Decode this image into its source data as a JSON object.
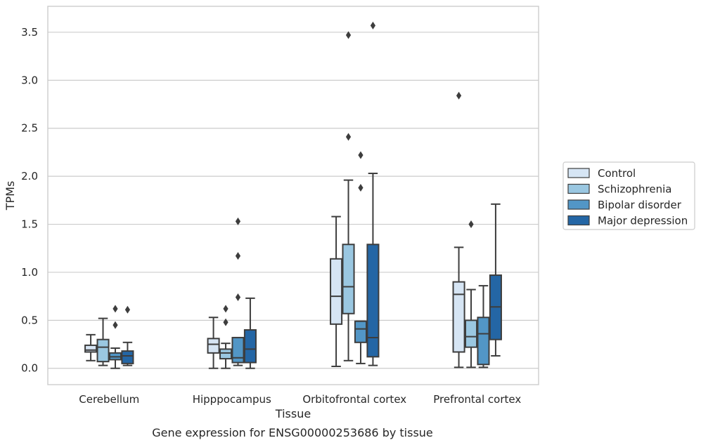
{
  "chart_data": {
    "type": "box",
    "caption": "Gene expression for ENSG00000253686 by tissue",
    "xlabel": "Tissue",
    "ylabel": "TPMs",
    "ylim": [
      -0.17,
      3.77
    ],
    "yticks": [
      0.0,
      0.5,
      1.0,
      1.5,
      2.0,
      2.5,
      3.0,
      3.5
    ],
    "ytick_labels": [
      "0.0",
      "0.5",
      "1.0",
      "1.5",
      "2.0",
      "2.5",
      "3.0",
      "3.5"
    ],
    "grid": "horizontal",
    "legend_position": "outside-right",
    "categories": [
      "Cerebellum",
      "Hipppocampus",
      "Orbitofrontal cortex",
      "Prefrontal cortex"
    ],
    "series": [
      {
        "name": "Control",
        "color": "#d6e5f4",
        "boxes": [
          {
            "whislo": 0.08,
            "q1": 0.17,
            "med": 0.19,
            "q3": 0.24,
            "whishi": 0.35,
            "fliers": []
          },
          {
            "whislo": 0.0,
            "q1": 0.16,
            "med": 0.25,
            "q3": 0.31,
            "whishi": 0.53,
            "fliers": []
          },
          {
            "whislo": 0.02,
            "q1": 0.46,
            "med": 0.75,
            "q3": 1.14,
            "whishi": 1.58,
            "fliers": []
          },
          {
            "whislo": 0.01,
            "q1": 0.17,
            "med": 0.77,
            "q3": 0.9,
            "whishi": 1.26,
            "fliers": [
              2.84
            ]
          }
        ]
      },
      {
        "name": "Schizophrenia",
        "color": "#9ac7e1",
        "boxes": [
          {
            "whislo": 0.03,
            "q1": 0.07,
            "med": 0.22,
            "q3": 0.3,
            "whishi": 0.52,
            "fliers": []
          },
          {
            "whislo": 0.0,
            "q1": 0.1,
            "med": 0.16,
            "q3": 0.2,
            "whishi": 0.26,
            "fliers": [
              0.48,
              0.62
            ]
          },
          {
            "whislo": 0.08,
            "q1": 0.57,
            "med": 0.85,
            "q3": 1.29,
            "whishi": 1.96,
            "fliers": [
              2.41,
              3.47
            ]
          },
          {
            "whislo": 0.01,
            "q1": 0.22,
            "med": 0.33,
            "q3": 0.5,
            "whishi": 0.82,
            "fliers": [
              1.5
            ]
          }
        ]
      },
      {
        "name": "Bipolar disorder",
        "color": "#5296c6",
        "boxes": [
          {
            "whislo": 0.0,
            "q1": 0.09,
            "med": 0.12,
            "q3": 0.16,
            "whishi": 0.21,
            "fliers": [
              0.45,
              0.62
            ]
          },
          {
            "whislo": 0.03,
            "q1": 0.06,
            "med": 0.11,
            "q3": 0.32,
            "whishi": 0.32,
            "fliers": [
              0.74,
              1.17,
              1.53
            ]
          },
          {
            "whislo": 0.05,
            "q1": 0.27,
            "med": 0.41,
            "q3": 0.49,
            "whishi": 0.49,
            "fliers": [
              1.88,
              2.22
            ]
          },
          {
            "whislo": 0.01,
            "q1": 0.04,
            "med": 0.36,
            "q3": 0.53,
            "whishi": 0.86,
            "fliers": []
          }
        ]
      },
      {
        "name": "Major depression",
        "color": "#2466a5",
        "boxes": [
          {
            "whislo": 0.03,
            "q1": 0.05,
            "med": 0.13,
            "q3": 0.18,
            "whishi": 0.27,
            "fliers": [
              0.61
            ]
          },
          {
            "whislo": 0.0,
            "q1": 0.06,
            "med": 0.2,
            "q3": 0.4,
            "whishi": 0.73,
            "fliers": []
          },
          {
            "whislo": 0.03,
            "q1": 0.12,
            "med": 0.32,
            "q3": 1.29,
            "whishi": 2.03,
            "fliers": [
              3.57
            ]
          },
          {
            "whislo": 0.13,
            "q1": 0.3,
            "med": 0.64,
            "q3": 0.97,
            "whishi": 1.71,
            "fliers": []
          }
        ]
      }
    ]
  }
}
